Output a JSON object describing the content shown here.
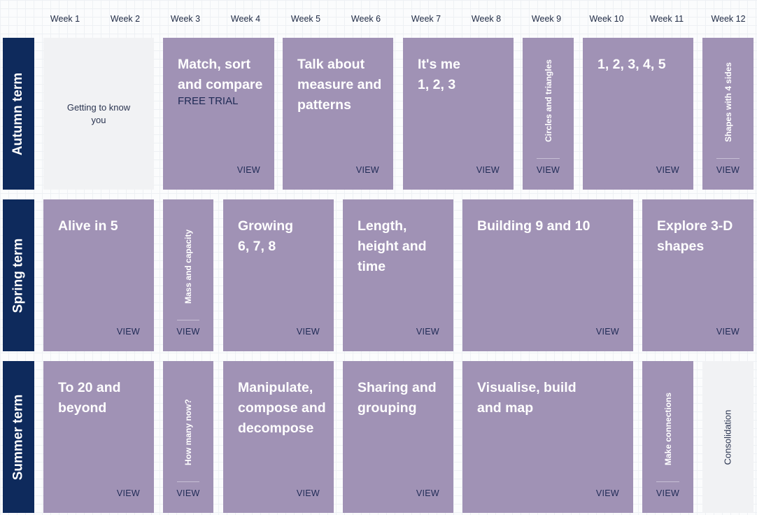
{
  "weeks": [
    "Week 1",
    "Week 2",
    "Week 3",
    "Week 4",
    "Week 5",
    "Week 6",
    "Week 7",
    "Week 8",
    "Week 9",
    "Week 10",
    "Week 11",
    "Week 12"
  ],
  "terms": {
    "autumn": "Autumn term",
    "spring": "Spring term",
    "summer": "Summer term"
  },
  "view_label": "VIEW",
  "colors": {
    "card": "#a092b5",
    "term": "#0e2a5c",
    "grey": "#f1f2f4"
  },
  "autumn": {
    "getting_to_know": "Getting to know you",
    "match": "Match, sort and compare",
    "free_trial": "FREE TRIAL",
    "talk": "Talk about measure and patterns",
    "its_me": "It's me 1, 2, 3",
    "circles": "Circles and triangles",
    "one_to_five": "1, 2, 3, 4, 5",
    "shapes4": "Shapes with 4 sides"
  },
  "spring": {
    "alive": "Alive in 5",
    "mass": "Mass and capacity",
    "growing": "Growing 6, 7, 8",
    "length": "Length, height and time",
    "building": "Building 9 and 10",
    "explore": "Explore 3-D shapes"
  },
  "summer": {
    "to20": "To 20 and beyond",
    "howmany": "How many now?",
    "manipulate": "Manipulate, compose and decompose",
    "sharing": "Sharing and grouping",
    "visualise": "Visualise, build and map",
    "connections": "Make connections",
    "consolidation": "Consolidation"
  }
}
